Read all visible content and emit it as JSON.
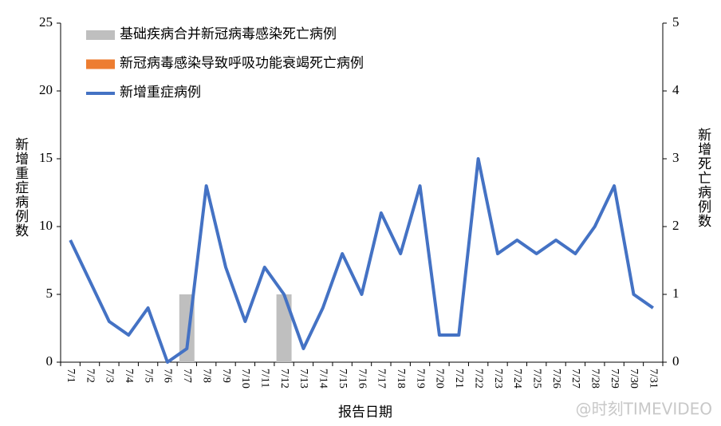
{
  "chart_data": {
    "type": "combo",
    "categories": [
      "7/1",
      "7/2",
      "7/3",
      "7/4",
      "7/5",
      "7/6",
      "7/7",
      "7/8",
      "7/9",
      "7/10",
      "7/11",
      "7/12",
      "7/13",
      "7/14",
      "7/15",
      "7/16",
      "7/17",
      "7/18",
      "7/19",
      "7/20",
      "7/21",
      "7/22",
      "7/23",
      "7/24",
      "7/25",
      "7/26",
      "7/27",
      "7/28",
      "7/29",
      "7/30",
      "7/31"
    ],
    "series": [
      {
        "name": "基础疾病合并新冠病毒感染死亡病例",
        "type": "bar",
        "axis": "y2",
        "color": "#bfbfbf",
        "values": [
          0,
          0,
          0,
          0,
          0,
          0,
          1,
          0,
          0,
          0,
          0,
          1,
          0,
          0,
          0,
          0,
          0,
          0,
          0,
          0,
          0,
          0,
          0,
          0,
          0,
          0,
          0,
          0,
          0,
          0,
          0
        ]
      },
      {
        "name": "新冠病毒感染导致呼吸功能衰竭死亡病例",
        "type": "bar",
        "axis": "y2",
        "color": "#ed7d31",
        "values": [
          0,
          0,
          0,
          0,
          0,
          0,
          0,
          0,
          0,
          0,
          0,
          0,
          0,
          0,
          0,
          0,
          0,
          0,
          0,
          0,
          0,
          0,
          0,
          0,
          0,
          0,
          0,
          0,
          0,
          0,
          0
        ]
      },
      {
        "name": "新增重症病例",
        "type": "line",
        "color": "#4472c4",
        "values": [
          9,
          6,
          3,
          2,
          4,
          0,
          1,
          13,
          7,
          3,
          7,
          5,
          1,
          4,
          8,
          5,
          11,
          8,
          13,
          2,
          2,
          15,
          8,
          9,
          8,
          9,
          8,
          10,
          13,
          5,
          4
        ]
      }
    ],
    "ylim": [
      0,
      25
    ],
    "yticks": [
      0,
      5,
      10,
      15,
      20,
      25
    ],
    "y2lim": [
      0,
      5
    ],
    "y2ticks": [
      0,
      1,
      2,
      3,
      4,
      5
    ],
    "ylabel": "新增重症病例数",
    "y2label": "新增死亡病例数",
    "xlabel": "报告日期",
    "legend": "upper left",
    "watermark": "@时刻TIMEVIDEO"
  }
}
